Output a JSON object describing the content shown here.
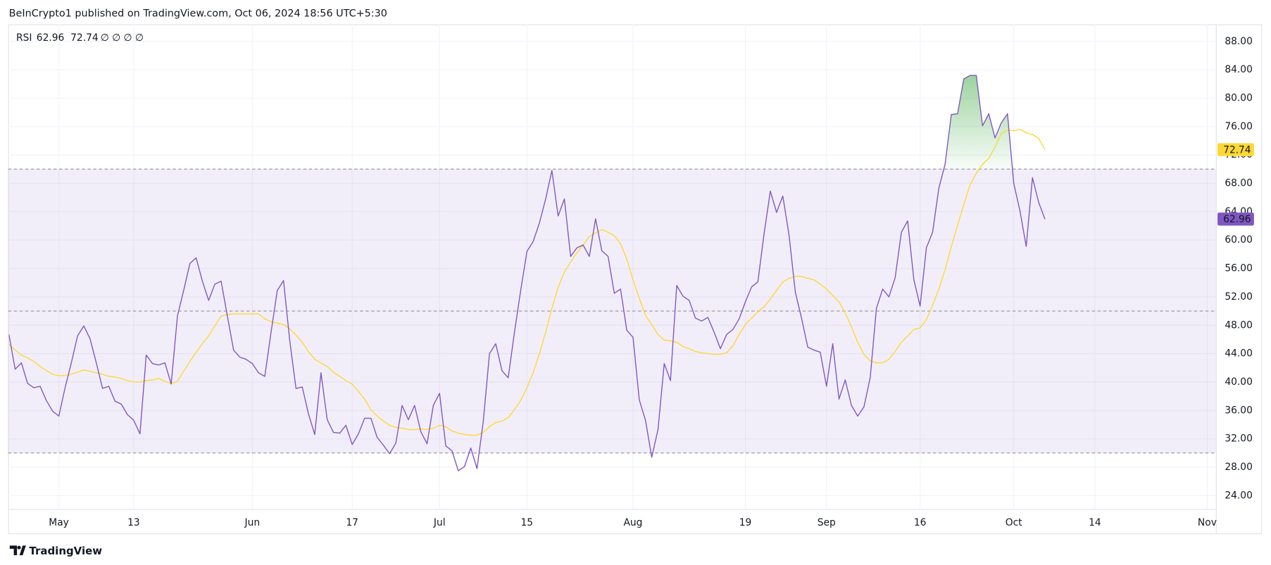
{
  "header": {
    "text": "BeInCrypto1 published on TradingView.com, Oct 06, 2024 18:56 UTC+5:30"
  },
  "footer": {
    "brand": "TradingView"
  },
  "chart_data": {
    "type": "line",
    "indicator": "RSI",
    "legend_extra": "∅ ∅ ∅ ∅",
    "bands": {
      "upper": 70,
      "middle": 50,
      "lower": 30,
      "color": "#7e57c2"
    },
    "overbought_color": "#4caf50",
    "grid": true,
    "x": [
      "Apr 23",
      "Apr 24",
      "Apr 25",
      "Apr 26",
      "Apr 27",
      "Apr 28",
      "Apr 29",
      "Apr 30",
      "May 1",
      "May 2",
      "May 3",
      "May 4",
      "May 5",
      "May 6",
      "May 7",
      "May 8",
      "May 9",
      "May 10",
      "May 11",
      "May 12",
      "May 13",
      "May 14",
      "May 15",
      "May 16",
      "May 17",
      "May 18",
      "May 19",
      "May 20",
      "May 21",
      "May 22",
      "May 23",
      "May 24",
      "May 25",
      "May 26",
      "May 27",
      "May 28",
      "May 29",
      "May 30",
      "May 31",
      "Jun 1",
      "Jun 2",
      "Jun 3",
      "Jun 4",
      "Jun 5",
      "Jun 6",
      "Jun 7",
      "Jun 8",
      "Jun 9",
      "Jun 10",
      "Jun 11",
      "Jun 12",
      "Jun 13",
      "Jun 14",
      "Jun 15",
      "Jun 16",
      "Jun 17",
      "Jun 18",
      "Jun 19",
      "Jun 20",
      "Jun 21",
      "Jun 22",
      "Jun 23",
      "Jun 24",
      "Jun 25",
      "Jun 26",
      "Jun 27",
      "Jun 28",
      "Jun 29",
      "Jun 30",
      "Jul 1",
      "Jul 2",
      "Jul 3",
      "Jul 4",
      "Jul 5",
      "Jul 6",
      "Jul 7",
      "Jul 8",
      "Jul 9",
      "Jul 10",
      "Jul 11",
      "Jul 12",
      "Jul 13",
      "Jul 14",
      "Jul 15",
      "Jul 16",
      "Jul 17",
      "Jul 18",
      "Jul 19",
      "Jul 20",
      "Jul 21",
      "Jul 22",
      "Jul 23",
      "Jul 24",
      "Jul 25",
      "Jul 26",
      "Jul 27",
      "Jul 28",
      "Jul 29",
      "Jul 30",
      "Jul 31",
      "Aug 1",
      "Aug 2",
      "Aug 3",
      "Aug 4",
      "Aug 5",
      "Aug 6",
      "Aug 7",
      "Aug 8",
      "Aug 9",
      "Aug 10",
      "Aug 11",
      "Aug 12",
      "Aug 13",
      "Aug 14",
      "Aug 15",
      "Aug 16",
      "Aug 17",
      "Aug 18",
      "Aug 19",
      "Aug 20",
      "Aug 21",
      "Aug 22",
      "Aug 23",
      "Aug 24",
      "Aug 25",
      "Aug 26",
      "Aug 27",
      "Aug 28",
      "Aug 29",
      "Aug 30",
      "Aug 31",
      "Sep 1",
      "Sep 2",
      "Sep 3",
      "Sep 4",
      "Sep 5",
      "Sep 6",
      "Sep 7",
      "Sep 8",
      "Sep 9",
      "Sep 10",
      "Sep 11",
      "Sep 12",
      "Sep 13",
      "Sep 14",
      "Sep 15",
      "Sep 16",
      "Sep 17",
      "Sep 18",
      "Sep 19",
      "Sep 20",
      "Sep 21",
      "Sep 22",
      "Sep 23",
      "Sep 24",
      "Sep 25",
      "Sep 26",
      "Sep 27",
      "Sep 28",
      "Sep 29",
      "Sep 30",
      "Oct 1",
      "Oct 2",
      "Oct 3",
      "Oct 4",
      "Oct 5",
      "Oct 6"
    ],
    "series": [
      {
        "color": "#7e57c2",
        "badge_text": "#ffffff",
        "values": [
          46.7,
          41.8,
          42.7,
          39.8,
          39.2,
          39.4,
          37.4,
          35.9,
          35.2,
          39.2,
          42.7,
          46.5,
          47.9,
          46.1,
          42.7,
          39.1,
          39.4,
          37.3,
          36.9,
          35.4,
          34.6,
          32.7,
          43.8,
          42.6,
          42.4,
          42.7,
          39.7,
          49.3,
          52.9,
          56.7,
          57.5,
          54.2,
          51.5,
          53.8,
          54.2,
          49.3,
          44.5,
          43.5,
          43.2,
          42.6,
          41.3,
          40.8,
          47.0,
          52.9,
          54.3,
          45.8,
          39.1,
          39.3,
          35.5,
          32.6,
          41.3,
          34.7,
          32.9,
          32.8,
          33.9,
          31.2,
          32.7,
          34.9,
          34.9,
          32.2,
          31.1,
          29.9,
          31.4,
          36.7,
          34.7,
          36.7,
          33.0,
          31.3,
          36.7,
          38.4,
          31.0,
          30.3,
          27.5,
          28.1,
          30.7,
          27.8,
          34.4,
          44.0,
          45.4,
          41.6,
          40.6,
          47.0,
          52.9,
          58.4,
          59.8,
          62.4,
          65.8,
          69.8,
          63.4,
          65.8,
          57.7,
          58.9,
          59.3,
          57.7,
          63.0,
          58.5,
          57.7,
          52.5,
          53.1,
          47.3,
          46.3,
          37.5,
          34.6,
          29.4,
          33.3,
          42.6,
          40.2,
          53.6,
          52.1,
          51.5,
          49.0,
          48.6,
          49.1,
          47.0,
          44.7,
          46.7,
          47.4,
          48.9,
          51.3,
          53.4,
          54.1,
          60.9,
          66.9,
          63.9,
          66.2,
          60.7,
          52.7,
          49.0,
          44.9,
          44.5,
          44.2,
          39.4,
          45.4,
          37.6,
          40.3,
          36.7,
          35.2,
          36.5,
          40.6,
          50.4,
          53.1,
          52.0,
          54.7,
          61.1,
          62.7,
          54.4,
          50.7,
          58.9,
          61.1,
          67.3,
          70.7,
          77.7,
          77.8,
          82.7,
          83.2,
          83.2,
          76.1,
          77.8,
          74.4,
          76.5,
          77.8,
          68.0,
          64.1,
          59.1,
          68.8,
          65.3,
          62.96
        ]
      },
      {
        "color": "#fdd835",
        "badge_text": "#131722",
        "values": [
          45.3,
          44.5,
          43.8,
          43.4,
          42.9,
          42.2,
          41.6,
          41.1,
          40.9,
          40.9,
          41.1,
          41.4,
          41.7,
          41.5,
          41.3,
          41.1,
          40.8,
          40.7,
          40.5,
          40.2,
          40.0,
          40.0,
          40.2,
          40.3,
          40.5,
          40.1,
          39.8,
          40.1,
          41.5,
          42.9,
          44.2,
          45.4,
          46.5,
          47.9,
          49.3,
          49.5,
          49.6,
          49.6,
          49.6,
          49.6,
          49.6,
          48.9,
          48.5,
          48.3,
          48.1,
          47.5,
          46.6,
          45.6,
          44.3,
          43.2,
          42.7,
          42.2,
          41.4,
          40.8,
          40.2,
          39.7,
          38.7,
          37.6,
          36.1,
          35.2,
          34.5,
          33.9,
          33.6,
          33.5,
          33.3,
          33.3,
          33.4,
          33.3,
          33.5,
          33.9,
          33.7,
          33.1,
          32.8,
          32.6,
          32.5,
          32.5,
          32.9,
          33.7,
          34.3,
          34.5,
          35.0,
          36.1,
          37.4,
          39.2,
          41.3,
          44.0,
          47.0,
          50.4,
          53.3,
          55.5,
          56.9,
          58.2,
          59.3,
          60.5,
          61.0,
          61.5,
          61.1,
          60.6,
          59.5,
          57.3,
          54.4,
          51.8,
          49.4,
          48.1,
          46.7,
          45.9,
          45.8,
          45.6,
          45.0,
          44.7,
          44.3,
          44.1,
          44.0,
          43.9,
          43.9,
          44.1,
          45.1,
          46.7,
          48.1,
          49.0,
          49.9,
          50.6,
          51.7,
          52.9,
          54.1,
          54.6,
          54.9,
          54.9,
          54.6,
          54.4,
          53.8,
          53.1,
          52.2,
          51.3,
          49.7,
          47.8,
          45.6,
          43.9,
          43.0,
          42.7,
          42.7,
          43.2,
          44.3,
          45.6,
          46.5,
          47.4,
          47.6,
          48.8,
          50.8,
          53.1,
          55.8,
          59.1,
          62.1,
          65.0,
          67.8,
          69.4,
          70.7,
          71.5,
          73.1,
          75.0,
          75.5,
          75.4,
          75.6,
          75.1,
          74.9,
          74.3,
          72.74
        ]
      }
    ],
    "xlim": [
      "Apr 23",
      "Nov 2"
    ],
    "xticks": [
      {
        "value": "May 1",
        "label": "May"
      },
      {
        "value": "May 13",
        "label": "13"
      },
      {
        "value": "Jun 1",
        "label": "Jun"
      },
      {
        "value": "Jun 17",
        "label": "17"
      },
      {
        "value": "Jul 1",
        "label": "Jul"
      },
      {
        "value": "Jul 15",
        "label": "15"
      },
      {
        "value": "Aug 1",
        "label": "Aug"
      },
      {
        "value": "Aug 19",
        "label": "19"
      },
      {
        "value": "Sep 1",
        "label": "Sep"
      },
      {
        "value": "Sep 16",
        "label": "16"
      },
      {
        "value": "Oct 1",
        "label": "Oct"
      },
      {
        "value": "Oct 14",
        "label": "14"
      },
      {
        "value": "Nov 1",
        "label": "Nov"
      }
    ],
    "ylim": [
      22.1,
      90.4
    ],
    "yticks": [
      {
        "value": 24,
        "label": "24.00"
      },
      {
        "value": 28,
        "label": "28.00"
      },
      {
        "value": 32,
        "label": "32.00"
      },
      {
        "value": 36,
        "label": "36.00"
      },
      {
        "value": 40,
        "label": "40.00"
      },
      {
        "value": 44,
        "label": "44.00"
      },
      {
        "value": 48,
        "label": "48.00"
      },
      {
        "value": 52,
        "label": "52.00"
      },
      {
        "value": 56,
        "label": "56.00"
      },
      {
        "value": 60,
        "label": "60.00"
      },
      {
        "value": 64,
        "label": "64.00"
      },
      {
        "value": 68,
        "label": "68.00"
      },
      {
        "value": 72,
        "label": "72.00"
      },
      {
        "value": 76,
        "label": "76.00"
      },
      {
        "value": 80,
        "label": "80.00"
      },
      {
        "value": 84,
        "label": "84.00"
      },
      {
        "value": 88,
        "label": "88.00"
      }
    ]
  }
}
